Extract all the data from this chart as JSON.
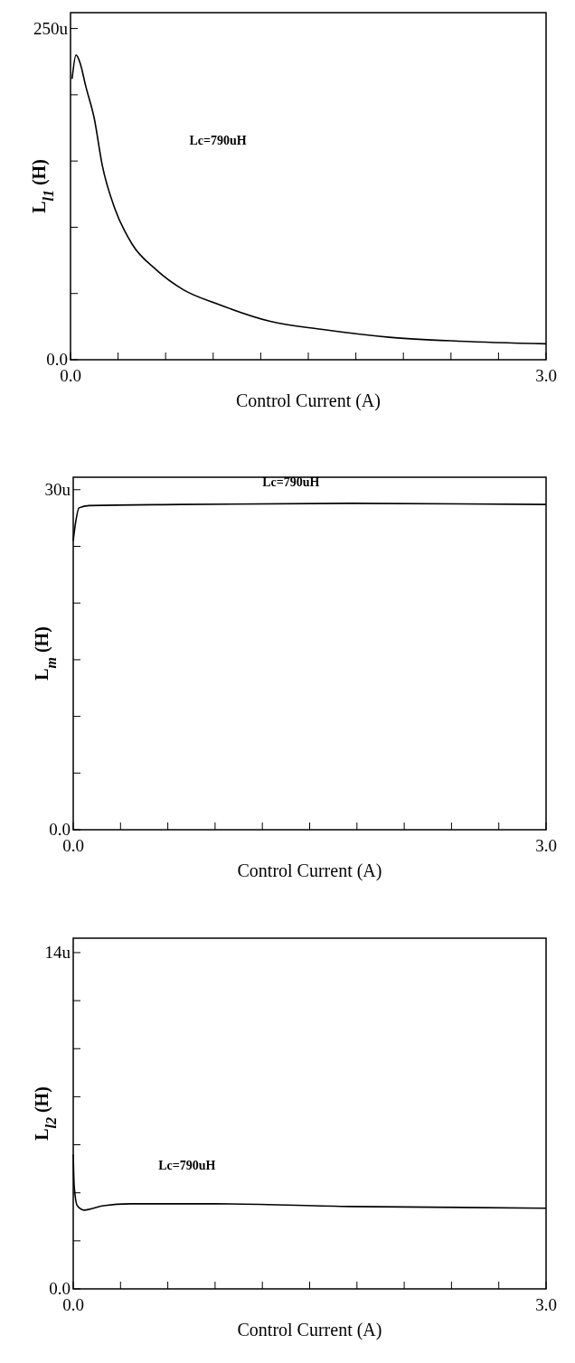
{
  "chart_data": [
    {
      "type": "line",
      "xlabel": "Control Current (A)",
      "ylabel": "L$_{l1}$ (H)",
      "annotations": [
        "Lc=790uH"
      ],
      "xlim": [
        0,
        3
      ],
      "xticks": [
        {
          "value": 0,
          "label": "0.0"
        },
        {
          "value": 0.3,
          "label": null
        },
        {
          "value": 0.6,
          "label": null
        },
        {
          "value": 0.9,
          "label": null
        },
        {
          "value": 1.2,
          "label": null
        },
        {
          "value": 1.5,
          "label": null
        },
        {
          "value": 1.8,
          "label": null
        },
        {
          "value": 2.1,
          "label": null
        },
        {
          "value": 2.4,
          "label": null
        },
        {
          "value": 2.7,
          "label": null
        },
        {
          "value": 3,
          "label": "3.0"
        }
      ],
      "ylim": [
        0,
        262
      ],
      "yticks": [
        {
          "value": 0,
          "label": "0.0"
        },
        {
          "value": 50,
          "label": null
        },
        {
          "value": 100,
          "label": null
        },
        {
          "value": 150,
          "label": null
        },
        {
          "value": 200,
          "label": null
        },
        {
          "value": 250,
          "label": "250u"
        }
      ],
      "series": [
        {
          "color": "#000000",
          "x": [
            0.01,
            0.035,
            0.063,
            0.095,
            0.15,
            0.2,
            0.28,
            0.39,
            0.54,
            0.71,
            0.93,
            1.26,
            1.58,
            2.01,
            2.45,
            3.0
          ],
          "values": [
            212,
            230,
            223,
            207,
            182,
            147,
            114,
            87,
            68,
            53,
            42,
            29,
            23,
            17,
            14,
            12
          ]
        }
      ]
    },
    {
      "type": "line",
      "xlabel": "Control Current (A)",
      "ylabel": "L$_{m}$ (H)",
      "annotations": [
        "Lc=790uH"
      ],
      "xlim": [
        0,
        3
      ],
      "xticks": [
        {
          "value": 0,
          "label": "0.0"
        },
        {
          "value": 0.3,
          "label": null
        },
        {
          "value": 0.6,
          "label": null
        },
        {
          "value": 0.9,
          "label": null
        },
        {
          "value": 1.2,
          "label": null
        },
        {
          "value": 1.5,
          "label": null
        },
        {
          "value": 1.8,
          "label": null
        },
        {
          "value": 2.1,
          "label": null
        },
        {
          "value": 2.4,
          "label": null
        },
        {
          "value": 2.7,
          "label": null
        },
        {
          "value": 3,
          "label": "3.0"
        }
      ],
      "ylim": [
        0,
        31.1
      ],
      "yticks": [
        {
          "value": 0,
          "label": "0.0"
        },
        {
          "value": 5,
          "label": null
        },
        {
          "value": 10,
          "label": null
        },
        {
          "value": 15,
          "label": null
        },
        {
          "value": 20,
          "label": null
        },
        {
          "value": 25,
          "label": null
        },
        {
          "value": 30,
          "label": "30u"
        }
      ],
      "series": [
        {
          "color": "#000000",
          "x": [
            0,
            0.015,
            0.037,
            0.1,
            0.68,
            1.76,
            3.0
          ],
          "values": [
            25.5,
            27.1,
            28.4,
            28.6,
            28.7,
            28.8,
            28.7
          ]
        }
      ]
    },
    {
      "type": "line",
      "xlabel": "Control Current (A)",
      "ylabel": "L$_{l2}$ (H)",
      "annotations": [
        "Lc=790uH"
      ],
      "xlim": [
        0,
        3
      ],
      "xticks": [
        {
          "value": 0,
          "label": "0.0"
        },
        {
          "value": 0.3,
          "label": null
        },
        {
          "value": 0.6,
          "label": null
        },
        {
          "value": 0.9,
          "label": null
        },
        {
          "value": 1.2,
          "label": null
        },
        {
          "value": 1.5,
          "label": null
        },
        {
          "value": 1.8,
          "label": null
        },
        {
          "value": 2.1,
          "label": null
        },
        {
          "value": 2.4,
          "label": null
        },
        {
          "value": 2.7,
          "label": null
        },
        {
          "value": 3,
          "label": "3.0"
        }
      ],
      "ylim": [
        0,
        14.6
      ],
      "yticks": [
        {
          "value": 0,
          "label": "0.0"
        },
        {
          "value": 2,
          "label": null
        },
        {
          "value": 4,
          "label": null
        },
        {
          "value": 6,
          "label": null
        },
        {
          "value": 8,
          "label": null
        },
        {
          "value": 10,
          "label": null
        },
        {
          "value": 12,
          "label": null
        },
        {
          "value": 14,
          "label": "14u"
        }
      ],
      "series": [
        {
          "color": "#000000",
          "x": [
            0,
            0.006,
            0.026,
            0.069,
            0.19,
            0.36,
            0.9,
            1.76,
            3.0
          ],
          "values": [
            5.6,
            4.3,
            3.46,
            3.28,
            3.46,
            3.54,
            3.54,
            3.43,
            3.36
          ]
        }
      ]
    }
  ]
}
